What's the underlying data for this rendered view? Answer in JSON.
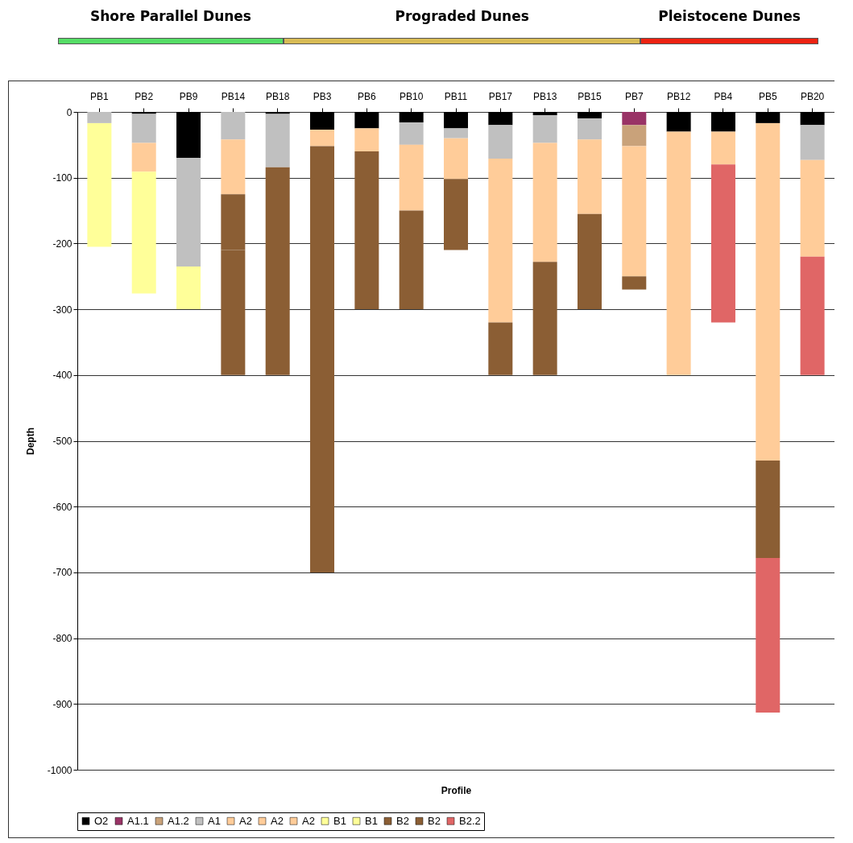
{
  "chart_data": {
    "type": "bar",
    "stacked": true,
    "xlabel": "Profile",
    "ylabel": "Depth",
    "annotations": [
      "Shore Parallel Dunes",
      "Prograded Dunes",
      "Pleistocene Dunes"
    ],
    "categories": [
      "PB1",
      "PB2",
      "PB9",
      "PB14",
      "PB18",
      "PB3",
      "PB6",
      "PB10",
      "PB11",
      "PB17",
      "PB13",
      "PB15",
      "PB7",
      "PB12",
      "PB4",
      "PB5",
      "PB20"
    ],
    "ylim": [
      -1000,
      0
    ],
    "yticks": [
      -1000,
      -900,
      -800,
      -700,
      -600,
      -500,
      -400,
      -300,
      -200,
      -100,
      0
    ],
    "grid": "y",
    "legend": "bottom",
    "series": [
      {
        "name": "O2",
        "color": "#000000",
        "values": [
          null,
          -3,
          -70,
          null,
          -3,
          -27,
          -25,
          -16,
          -25,
          -20,
          -5,
          -10,
          null,
          -30,
          -30,
          -17,
          -20
        ]
      },
      {
        "name": "A1.1",
        "color": "#993366",
        "values": [
          null,
          null,
          null,
          null,
          null,
          null,
          null,
          null,
          null,
          null,
          null,
          null,
          -20,
          null,
          null,
          null,
          null
        ]
      },
      {
        "name": "A1.2",
        "color": "#c9a27a",
        "values": [
          null,
          null,
          null,
          null,
          null,
          null,
          null,
          null,
          null,
          null,
          null,
          null,
          -32,
          null,
          null,
          null,
          null
        ]
      },
      {
        "name": "A1",
        "color": "#c0c0c0",
        "values": [
          -17,
          -44,
          -165,
          -42,
          -81,
          null,
          null,
          -34,
          -15,
          -51,
          -42,
          -32,
          null,
          null,
          null,
          null,
          -53
        ]
      },
      {
        "name": "A2",
        "color": "#ffcc99",
        "values": [
          null,
          -44,
          null,
          -83,
          null,
          null,
          null,
          null,
          null,
          null,
          null,
          null,
          null,
          null,
          null,
          null,
          null
        ]
      },
      {
        "name": "A2",
        "color": "#ffcc99",
        "values": [
          null,
          null,
          null,
          null,
          null,
          -25,
          -35,
          -100,
          -62,
          -249,
          -181,
          -113,
          -198,
          null,
          null,
          null,
          null
        ]
      },
      {
        "name": "A2",
        "color": "#ffcc99",
        "values": [
          null,
          null,
          null,
          null,
          null,
          null,
          null,
          null,
          null,
          null,
          null,
          null,
          null,
          -370,
          -50,
          -513,
          -147
        ]
      },
      {
        "name": "B1",
        "color": "#ffff99",
        "values": [
          -188,
          -185,
          null,
          null,
          null,
          null,
          null,
          null,
          null,
          null,
          null,
          null,
          null,
          null,
          null,
          null,
          null
        ]
      },
      {
        "name": "B1",
        "color": "#ffff99",
        "values": [
          null,
          null,
          -65,
          null,
          null,
          null,
          null,
          null,
          null,
          null,
          null,
          null,
          null,
          null,
          null,
          null,
          null
        ]
      },
      {
        "name": "B2",
        "color": "#8b5e34",
        "values": [
          null,
          null,
          null,
          -85,
          -316,
          -648,
          -240,
          -150,
          -108,
          -80,
          -172,
          -145,
          -20,
          null,
          null,
          -148,
          null
        ]
      },
      {
        "name": "B2",
        "color": "#8b5e34",
        "values": [
          null,
          null,
          null,
          -190,
          null,
          null,
          null,
          null,
          null,
          null,
          null,
          null,
          null,
          null,
          null,
          null,
          null
        ]
      },
      {
        "name": "B2.2",
        "color": "#e06666",
        "values": [
          null,
          null,
          null,
          null,
          null,
          null,
          null,
          null,
          null,
          null,
          null,
          null,
          null,
          null,
          -240,
          -235,
          -180
        ]
      }
    ]
  }
}
